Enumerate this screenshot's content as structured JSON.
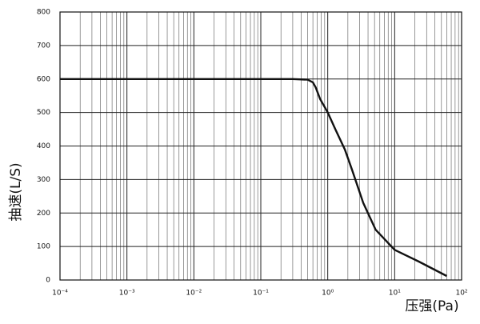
{
  "chart_data": {
    "type": "line",
    "x_label": "压强(Pa)",
    "y_label": "抽速(L/S)",
    "x": [
      0.0001,
      0.001,
      0.01,
      0.1,
      0.3,
      0.5,
      0.6,
      0.66,
      0.77,
      1.0,
      1.3,
      1.8,
      2.3,
      3.4,
      5.2,
      10,
      23,
      60
    ],
    "series": [
      {
        "color": "#111111",
        "values": [
          600,
          600,
          600,
          600,
          600,
          598,
          590,
          575,
          540,
          500,
          450,
          390,
          330,
          230,
          150,
          90,
          55,
          12
        ]
      }
    ],
    "xlim": [
      0.0001,
      100
    ],
    "log_x": true,
    "xticks": [
      {
        "value": 0.0001,
        "label": "10⁻⁴"
      },
      {
        "value": 0.001,
        "label": "10⁻³"
      },
      {
        "value": 0.01,
        "label": "10⁻²"
      },
      {
        "value": 0.1,
        "label": "10⁻¹"
      },
      {
        "value": 1,
        "label": "10⁰"
      },
      {
        "value": 10,
        "label": "10¹"
      },
      {
        "value": 100,
        "label": "10²"
      }
    ],
    "ylim": [
      0,
      800
    ],
    "yticks": [
      0,
      100,
      200,
      300,
      400,
      500,
      600,
      700,
      800
    ],
    "grid": true
  }
}
